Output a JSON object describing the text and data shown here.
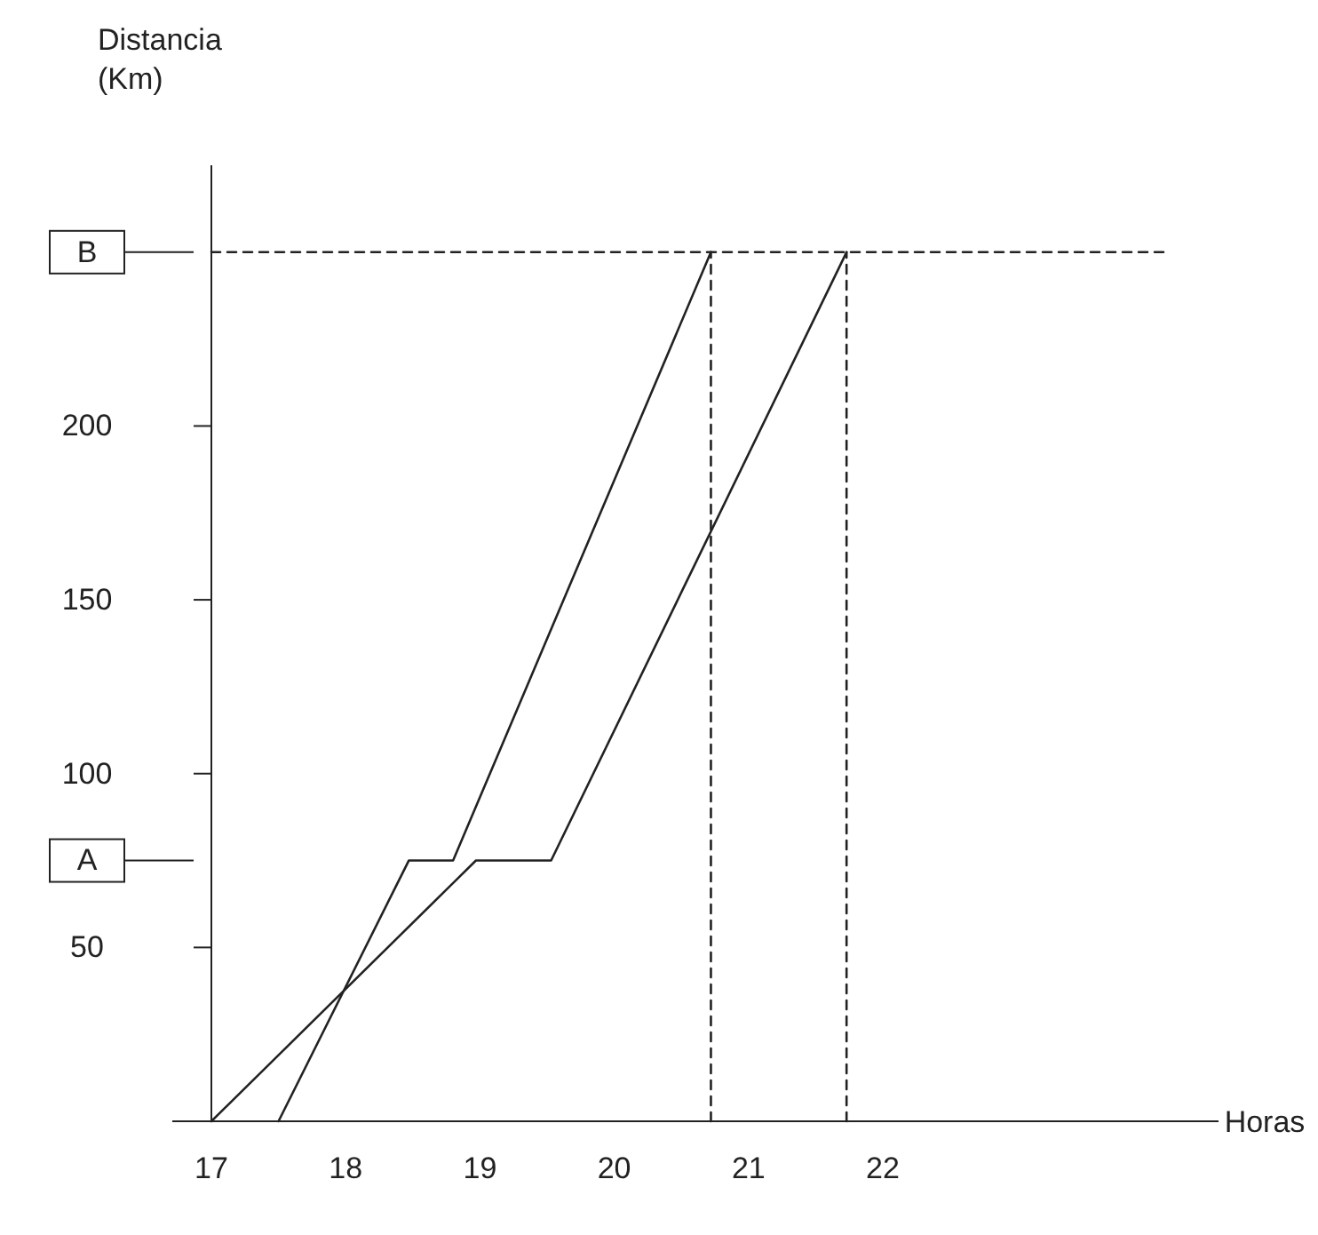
{
  "chart_data": {
    "type": "line",
    "xlabel": "Horas",
    "ylabel": "Distancia\n(Km)",
    "xlim": [
      17,
      24.5
    ],
    "ylim": [
      0,
      275
    ],
    "xticks": [
      17,
      18,
      19,
      20,
      21,
      22
    ],
    "yticks": [
      50,
      {
        "value": 75,
        "label": "A"
      },
      100,
      150,
      200,
      {
        "value": 250,
        "label": "B"
      }
    ],
    "grid": false,
    "series": [
      {
        "color": "#222222",
        "x": [
          17.5,
          18.47,
          18.8,
          20.72
        ],
        "values": [
          0,
          75,
          75,
          250
        ],
        "line_style": "solid"
      },
      {
        "color": "#222222",
        "x": [
          17,
          18.97,
          19.53,
          21.73
        ],
        "values": [
          0,
          75,
          75,
          250
        ],
        "line_style": "solid"
      },
      {
        "color": "#222222",
        "x": [
          17,
          24.1
        ],
        "values": [
          250,
          250
        ],
        "line_style": "dashed"
      },
      {
        "color": "#222222",
        "x": [
          20.72,
          20.72
        ],
        "values": [
          0,
          250
        ],
        "line_style": "dashed"
      },
      {
        "color": "#222222",
        "x": [
          21.73,
          21.73
        ],
        "values": [
          0,
          250
        ],
        "line_style": "dashed"
      }
    ]
  }
}
